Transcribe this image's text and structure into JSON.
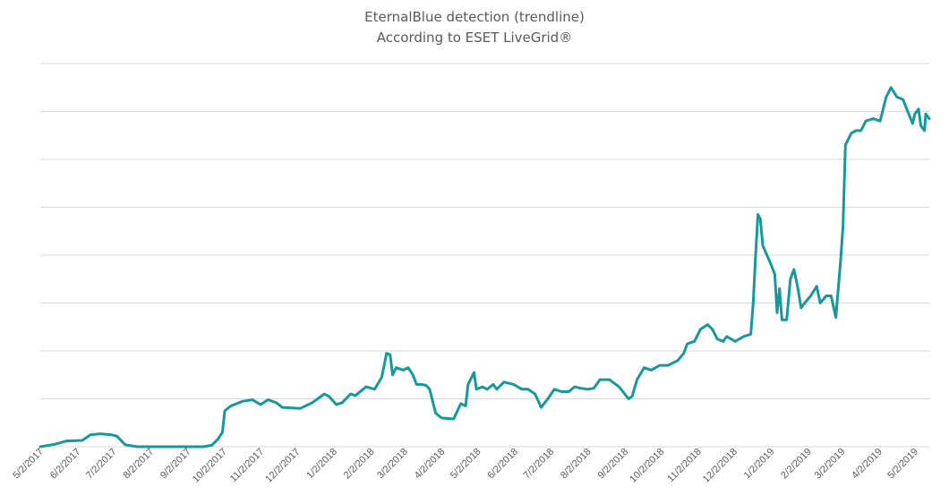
{
  "chart_data": {
    "type": "line",
    "title": "EternalBlue detection (trendline)",
    "subtitle": "According to ESET LiveGrid®",
    "xlabel": "",
    "ylabel": "",
    "y_tick_labels_shown": false,
    "grid": true,
    "legend": "none",
    "color": "#17989a",
    "x_ticks": [
      "5/2/2017",
      "6/2/2017",
      "7/2/2017",
      "8/2/2017",
      "9/2/2017",
      "10/2/2017",
      "11/2/2017",
      "12/2/2017",
      "1/2/2018",
      "2/2/2018",
      "3/2/2018",
      "4/2/2018",
      "5/2/2018",
      "6/2/2018",
      "7/2/2018",
      "8/2/2018",
      "9/2/2018",
      "10/2/2018",
      "11/2/2018",
      "12/2/2018",
      "1/2/2019",
      "2/2/2019",
      "3/2/2019",
      "4/2/2019",
      "5/2/2019"
    ],
    "xlim": [
      "2017-05-02",
      "2019-05-14"
    ],
    "ylim": [
      0,
      8
    ],
    "series": [
      {
        "values": [
          [
            "2017-05-02",
            0.0
          ],
          [
            "2017-05-14",
            0.05
          ],
          [
            "2017-05-24",
            0.12
          ],
          [
            "2017-06-06",
            0.13
          ],
          [
            "2017-06-13",
            0.25
          ],
          [
            "2017-06-21",
            0.27
          ],
          [
            "2017-06-30",
            0.25
          ],
          [
            "2017-07-05",
            0.22
          ],
          [
            "2017-07-12",
            0.04
          ],
          [
            "2017-07-22",
            0.0
          ],
          [
            "2017-09-15",
            0.0
          ],
          [
            "2017-09-22",
            0.03
          ],
          [
            "2017-09-27",
            0.15
          ],
          [
            "2017-10-01",
            0.3
          ],
          [
            "2017-10-03",
            0.75
          ],
          [
            "2017-10-08",
            0.85
          ],
          [
            "2017-10-18",
            0.95
          ],
          [
            "2017-10-26",
            0.98
          ],
          [
            "2017-11-02",
            0.88
          ],
          [
            "2017-11-08",
            0.98
          ],
          [
            "2017-11-15",
            0.92
          ],
          [
            "2017-11-20",
            0.82
          ],
          [
            "2017-12-05",
            0.8
          ],
          [
            "2017-12-15",
            0.92
          ],
          [
            "2017-12-25",
            1.1
          ],
          [
            "2017-12-29",
            1.05
          ],
          [
            "2018-01-04",
            0.88
          ],
          [
            "2018-01-09",
            0.92
          ],
          [
            "2018-01-16",
            1.1
          ],
          [
            "2018-01-20",
            1.07
          ],
          [
            "2018-01-29",
            1.25
          ],
          [
            "2018-02-05",
            1.2
          ],
          [
            "2018-02-11",
            1.45
          ],
          [
            "2018-02-15",
            1.95
          ],
          [
            "2018-02-18",
            1.92
          ],
          [
            "2018-02-20",
            1.5
          ],
          [
            "2018-02-23",
            1.65
          ],
          [
            "2018-03-01",
            1.6
          ],
          [
            "2018-03-05",
            1.65
          ],
          [
            "2018-03-09",
            1.5
          ],
          [
            "2018-03-12",
            1.3
          ],
          [
            "2018-03-16",
            1.3
          ],
          [
            "2018-03-20",
            1.28
          ],
          [
            "2018-03-23",
            1.2
          ],
          [
            "2018-03-28",
            0.7
          ],
          [
            "2018-04-02",
            0.6
          ],
          [
            "2018-04-12",
            0.58
          ],
          [
            "2018-04-18",
            0.9
          ],
          [
            "2018-04-22",
            0.85
          ],
          [
            "2018-04-24",
            1.3
          ],
          [
            "2018-04-29",
            1.55
          ],
          [
            "2018-05-01",
            1.2
          ],
          [
            "2018-05-06",
            1.25
          ],
          [
            "2018-05-10",
            1.2
          ],
          [
            "2018-05-15",
            1.3
          ],
          [
            "2018-05-18",
            1.2
          ],
          [
            "2018-05-24",
            1.35
          ],
          [
            "2018-06-01",
            1.3
          ],
          [
            "2018-06-08",
            1.2
          ],
          [
            "2018-06-13",
            1.2
          ],
          [
            "2018-06-19",
            1.1
          ],
          [
            "2018-06-24",
            0.82
          ],
          [
            "2018-06-29",
            0.98
          ],
          [
            "2018-07-05",
            1.2
          ],
          [
            "2018-07-11",
            1.15
          ],
          [
            "2018-07-17",
            1.15
          ],
          [
            "2018-07-22",
            1.25
          ],
          [
            "2018-07-27",
            1.22
          ],
          [
            "2018-08-02",
            1.2
          ],
          [
            "2018-08-07",
            1.22
          ],
          [
            "2018-08-12",
            1.4
          ],
          [
            "2018-08-20",
            1.4
          ],
          [
            "2018-08-28",
            1.25
          ],
          [
            "2018-09-05",
            1.0
          ],
          [
            "2018-09-08",
            1.05
          ],
          [
            "2018-09-12",
            1.4
          ],
          [
            "2018-09-18",
            1.65
          ],
          [
            "2018-09-24",
            1.6
          ],
          [
            "2018-10-01",
            1.7
          ],
          [
            "2018-10-08",
            1.7
          ],
          [
            "2018-10-16",
            1.8
          ],
          [
            "2018-10-21",
            1.95
          ],
          [
            "2018-10-24",
            2.15
          ],
          [
            "2018-10-30",
            2.2
          ],
          [
            "2018-11-04",
            2.45
          ],
          [
            "2018-11-10",
            2.55
          ],
          [
            "2018-11-14",
            2.45
          ],
          [
            "2018-11-18",
            2.25
          ],
          [
            "2018-11-23",
            2.2
          ],
          [
            "2018-11-26",
            2.3
          ],
          [
            "2018-12-03",
            2.2
          ],
          [
            "2018-12-10",
            2.3
          ],
          [
            "2018-12-16",
            2.35
          ],
          [
            "2018-12-18",
            3.0
          ],
          [
            "2018-12-20",
            4.0
          ],
          [
            "2018-12-22",
            4.85
          ],
          [
            "2018-12-24",
            4.75
          ],
          [
            "2018-12-26",
            4.2
          ],
          [
            "2019-01-02",
            3.8
          ],
          [
            "2019-01-05",
            3.6
          ],
          [
            "2019-01-07",
            2.8
          ],
          [
            "2019-01-09",
            3.3
          ],
          [
            "2019-01-11",
            2.65
          ],
          [
            "2019-01-15",
            2.65
          ],
          [
            "2019-01-18",
            3.5
          ],
          [
            "2019-01-21",
            3.7
          ],
          [
            "2019-01-24",
            3.35
          ],
          [
            "2019-01-27",
            2.9
          ],
          [
            "2019-01-30",
            3.0
          ],
          [
            "2019-02-04",
            3.15
          ],
          [
            "2019-02-09",
            3.35
          ],
          [
            "2019-02-12",
            3.0
          ],
          [
            "2019-02-17",
            3.15
          ],
          [
            "2019-02-21",
            3.15
          ],
          [
            "2019-02-25",
            2.7
          ],
          [
            "2019-03-01",
            3.9
          ],
          [
            "2019-03-03",
            4.6
          ],
          [
            "2019-03-05",
            6.3
          ],
          [
            "2019-03-10",
            6.55
          ],
          [
            "2019-03-14",
            6.6
          ],
          [
            "2019-03-18",
            6.6
          ],
          [
            "2019-03-22",
            6.8
          ],
          [
            "2019-03-28",
            6.85
          ],
          [
            "2019-04-03",
            6.8
          ],
          [
            "2019-04-08",
            7.3
          ],
          [
            "2019-04-12",
            7.5
          ],
          [
            "2019-04-17",
            7.3
          ],
          [
            "2019-04-22",
            7.25
          ],
          [
            "2019-04-26",
            7.0
          ],
          [
            "2019-04-30",
            6.75
          ],
          [
            "2019-05-02",
            6.95
          ],
          [
            "2019-05-05",
            7.05
          ],
          [
            "2019-05-07",
            6.7
          ],
          [
            "2019-05-10",
            6.6
          ],
          [
            "2019-05-11",
            6.95
          ],
          [
            "2019-05-14",
            6.85
          ]
        ]
      }
    ]
  }
}
